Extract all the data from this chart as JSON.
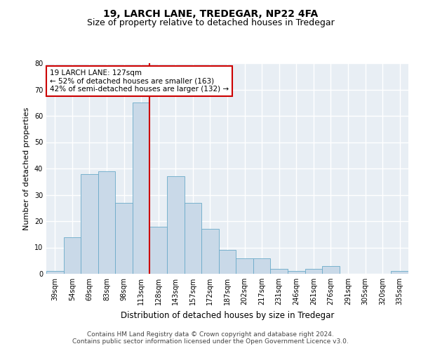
{
  "title": "19, LARCH LANE, TREDEGAR, NP22 4FA",
  "subtitle": "Size of property relative to detached houses in Tredegar",
  "xlabel": "Distribution of detached houses by size in Tredegar",
  "ylabel": "Number of detached properties",
  "categories": [
    "39sqm",
    "54sqm",
    "69sqm",
    "83sqm",
    "98sqm",
    "113sqm",
    "128sqm",
    "143sqm",
    "157sqm",
    "172sqm",
    "187sqm",
    "202sqm",
    "217sqm",
    "231sqm",
    "246sqm",
    "261sqm",
    "276sqm",
    "291sqm",
    "305sqm",
    "320sqm",
    "335sqm"
  ],
  "values": [
    1,
    14,
    38,
    39,
    27,
    65,
    18,
    37,
    27,
    17,
    9,
    6,
    6,
    2,
    1,
    2,
    3,
    0,
    0,
    0,
    1
  ],
  "bar_color": "#c9d9e8",
  "bar_edge_color": "#6aaac8",
  "vline_x_index": 5.5,
  "vline_color": "#cc0000",
  "annotation_text": "19 LARCH LANE: 127sqm\n← 52% of detached houses are smaller (163)\n42% of semi-detached houses are larger (132) →",
  "annotation_box_color": "#ffffff",
  "annotation_box_edge": "#cc0000",
  "ylim": [
    0,
    80
  ],
  "yticks": [
    0,
    10,
    20,
    30,
    40,
    50,
    60,
    70,
    80
  ],
  "background_color": "#e8eef4",
  "grid_color": "#ffffff",
  "fig_background": "#ffffff",
  "footer_line1": "Contains HM Land Registry data © Crown copyright and database right 2024.",
  "footer_line2": "Contains public sector information licensed under the Open Government Licence v3.0.",
  "title_fontsize": 10,
  "subtitle_fontsize": 9,
  "tick_fontsize": 7,
  "ylabel_fontsize": 8,
  "xlabel_fontsize": 8.5,
  "footer_fontsize": 6.5,
  "annotation_fontsize": 7.5
}
